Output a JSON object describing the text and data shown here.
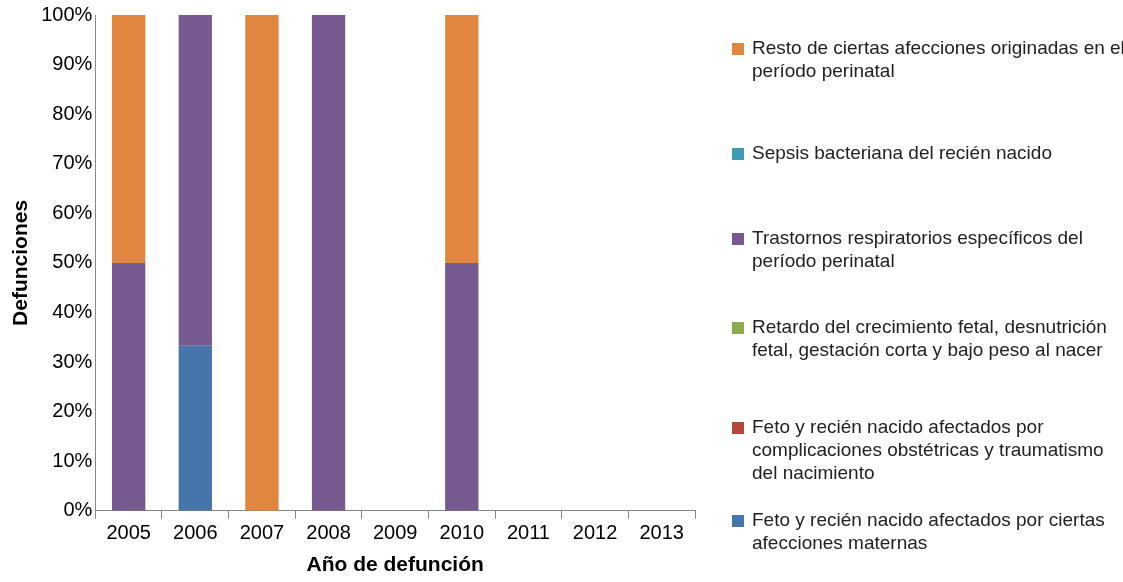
{
  "chart_data": {
    "type": "bar",
    "stacked": true,
    "xlabel": "Año de defunción",
    "ylabel": "Defunciones",
    "categories": [
      "2005",
      "2006",
      "2007",
      "2008",
      "2009",
      "2010",
      "2011",
      "2012",
      "2013"
    ],
    "ylim": [
      0,
      100
    ],
    "yticks": [
      {
        "value": 0,
        "label": "0%"
      },
      {
        "value": 10,
        "label": "10%"
      },
      {
        "value": 20,
        "label": "20%"
      },
      {
        "value": 30,
        "label": "30%"
      },
      {
        "value": 40,
        "label": "40%"
      },
      {
        "value": 50,
        "label": "50%"
      },
      {
        "value": 60,
        "label": "60%"
      },
      {
        "value": 70,
        "label": "70%"
      },
      {
        "value": 80,
        "label": "80%"
      },
      {
        "value": 90,
        "label": "90%"
      },
      {
        "value": 100,
        "label": "100%"
      }
    ],
    "grid": false,
    "legend": "right",
    "series": [
      {
        "name": "Feto y recién nacido afectados por ciertas afecciones maternas",
        "color": "#4675ab",
        "values": [
          0,
          33.3,
          0,
          0,
          0,
          0,
          0,
          0,
          0
        ]
      },
      {
        "name": "Feto y recién nacido afectados por complicaciones obstétricas y traumatismo del nacimiento",
        "color": "#b6473f",
        "values": [
          0,
          0,
          0,
          0,
          0,
          0,
          0,
          0,
          0
        ]
      },
      {
        "name": "Retardo del crecimiento fetal, desnutrición fetal, gestación corta y bajo peso al nacer",
        "color": "#8bab4f",
        "values": [
          0,
          0,
          0,
          0,
          0,
          0,
          0,
          0,
          0
        ]
      },
      {
        "name": "Trastornos respiratorios específicos del período perinatal",
        "color": "#76598f",
        "values": [
          50,
          66.7,
          0,
          100,
          0,
          50,
          0,
          0,
          0
        ]
      },
      {
        "name": "Sepsis bacteriana del recién nacido",
        "color": "#3e9ab4",
        "values": [
          0,
          0,
          0,
          0,
          0,
          0,
          0,
          0,
          0
        ]
      },
      {
        "name": "Resto de ciertas afecciones originadas en el período perinatal",
        "color": "#e0863f",
        "values": [
          50,
          0,
          100,
          0,
          0,
          50,
          0,
          0,
          0
        ]
      }
    ]
  }
}
